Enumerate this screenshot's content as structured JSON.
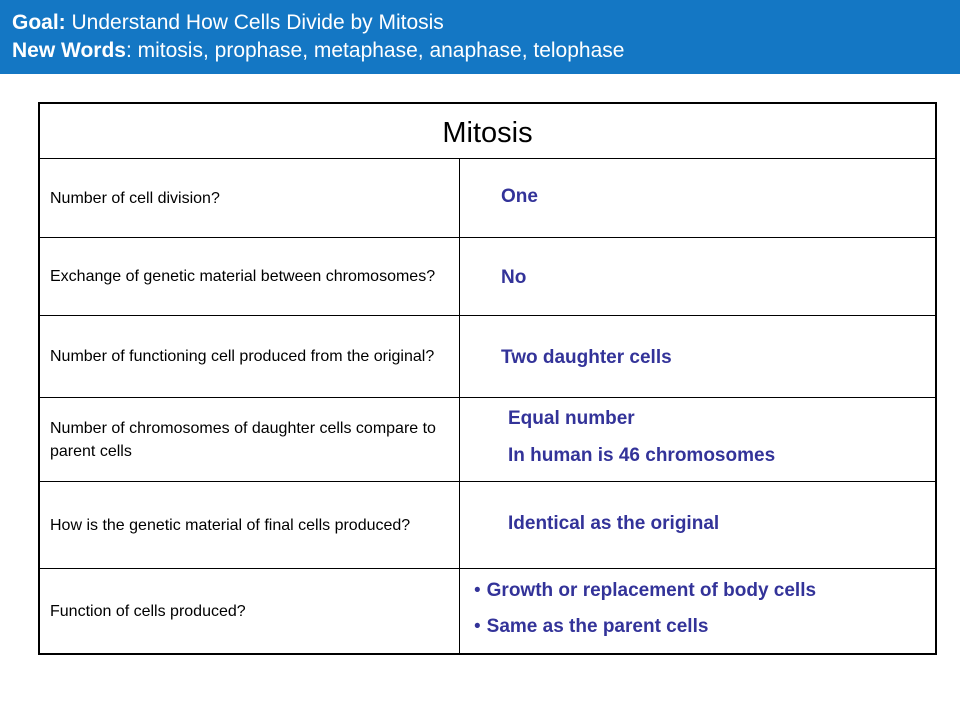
{
  "header": {
    "goal_label": "Goal:",
    "goal_text": " Understand How Cells Divide by Mitosis",
    "words_label": "New Words",
    "words_text": ": mitosis, prophase, metaphase, anaphase, telophase",
    "background_color": "#1477c4"
  },
  "table": {
    "title": "Mitosis",
    "answer_color": "#333399",
    "rows": [
      {
        "question": "Number of cell division?",
        "answers": [
          "One"
        ]
      },
      {
        "question": "Exchange of genetic material between chromosomes?",
        "answers": [
          "No"
        ]
      },
      {
        "question": "Number of functioning cell produced from the original?",
        "answers": [
          "Two daughter cells"
        ]
      },
      {
        "question": "Number of chromosomes of daughter cells compare to parent cells",
        "answers": [
          "Equal number",
          "In human is 46 chromosomes"
        ]
      },
      {
        "question": "How is the genetic material of final cells produced?",
        "answers": [
          "Identical as the original"
        ]
      },
      {
        "question": "Function of cells produced?",
        "answers": [
          "Growth or replacement of body cells",
          "Same as the parent cells"
        ]
      }
    ]
  }
}
